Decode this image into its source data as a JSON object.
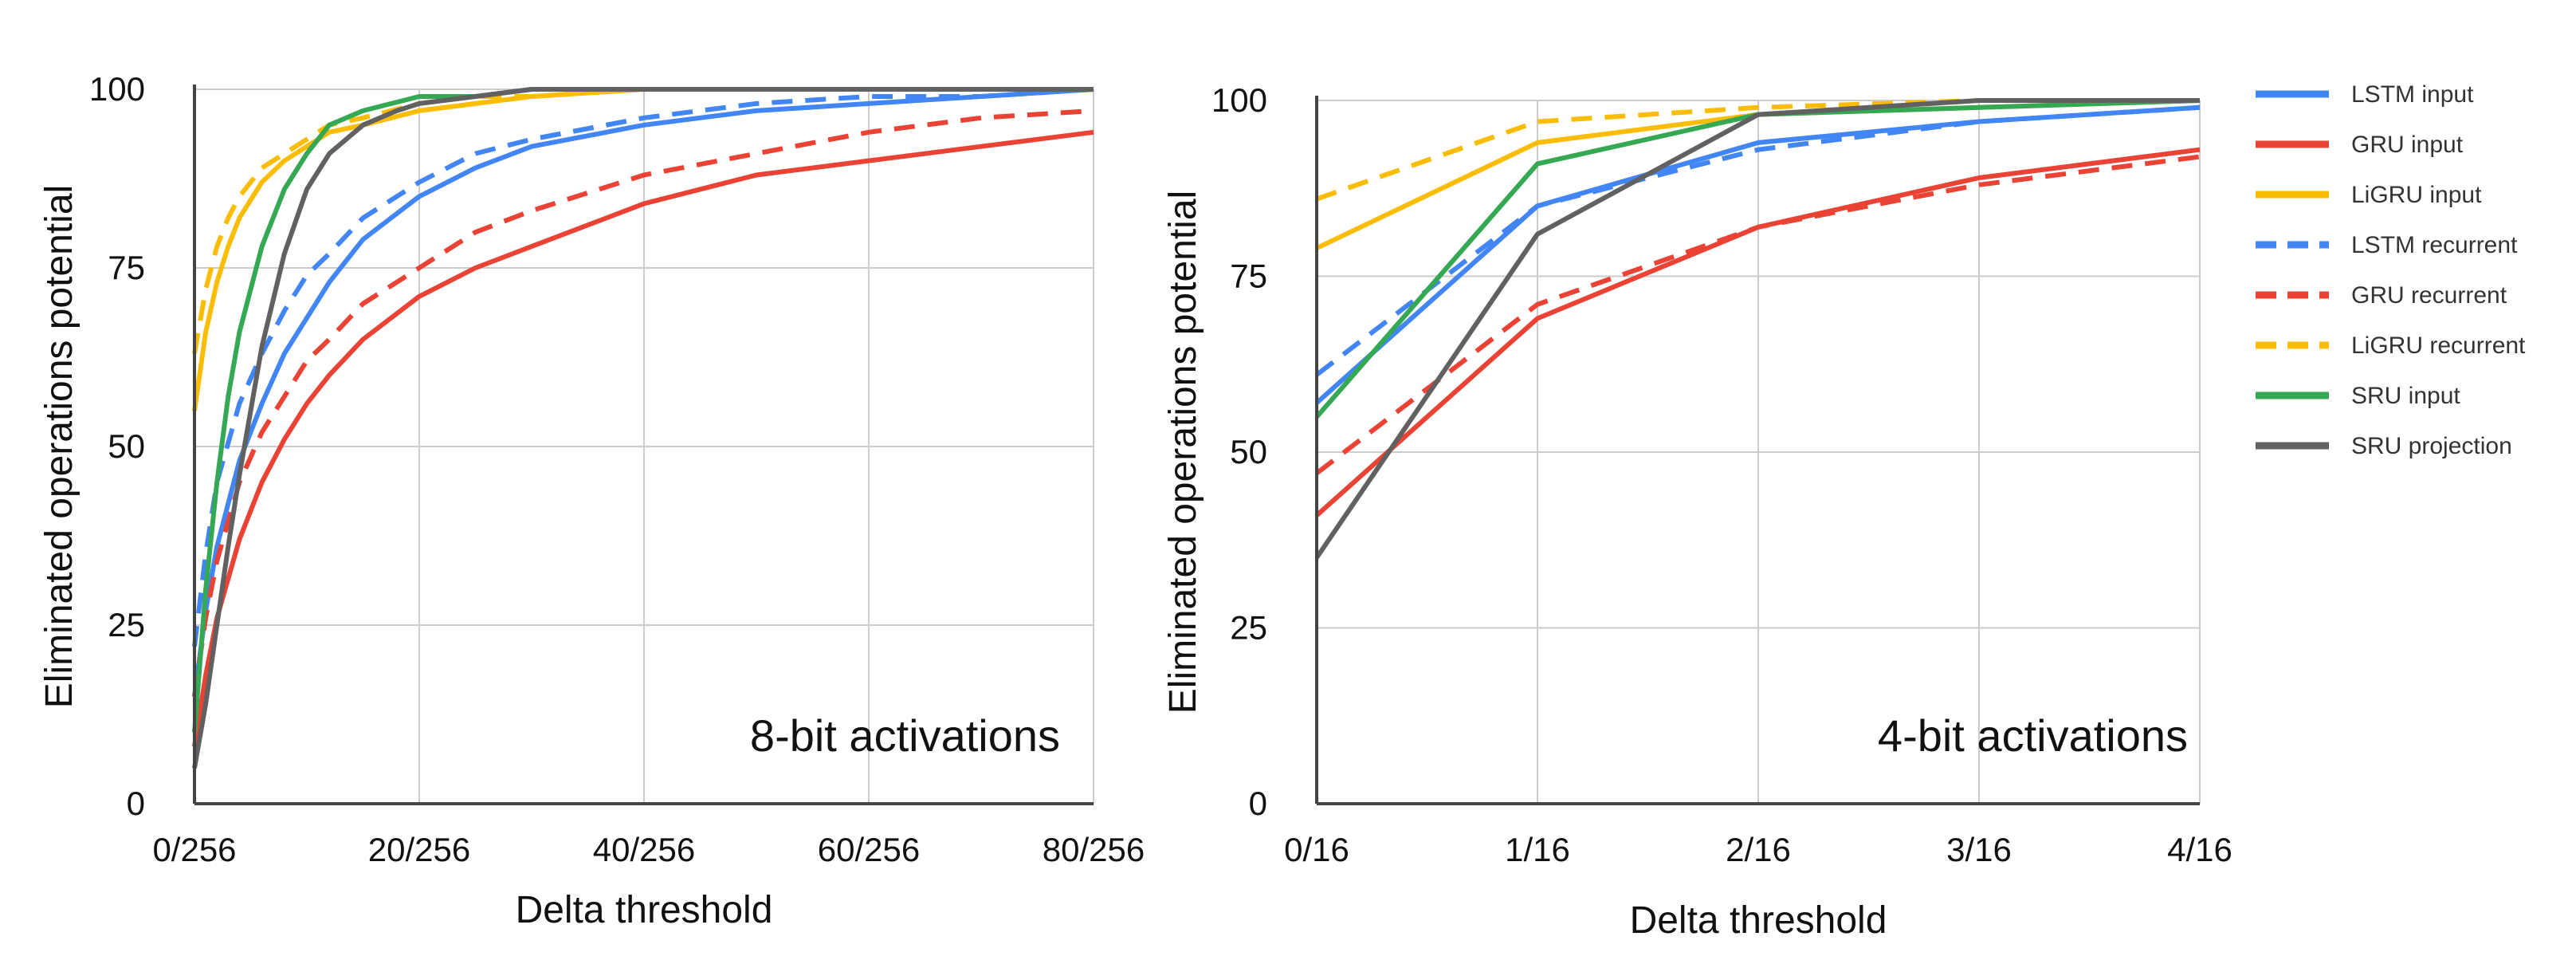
{
  "legend": [
    {
      "name": "LSTM input",
      "color": "#4285F4",
      "dashed": false
    },
    {
      "name": "GRU input",
      "color": "#EA4335",
      "dashed": false
    },
    {
      "name": "LiGRU input",
      "color": "#FBBC04",
      "dashed": false
    },
    {
      "name": "LSTM recurrent",
      "color": "#4285F4",
      "dashed": true
    },
    {
      "name": "GRU recurrent",
      "color": "#EA4335",
      "dashed": true
    },
    {
      "name": "LiGRU recurrent",
      "color": "#FBBC04",
      "dashed": true
    },
    {
      "name": "SRU input",
      "color": "#34A853",
      "dashed": false
    },
    {
      "name": "SRU projection",
      "color": "#616161",
      "dashed": false
    }
  ],
  "chart_data": [
    {
      "type": "line",
      "annotation": "8-bit activations",
      "xlabel": "Delta threshold",
      "ylabel": "Eliminated operations potential",
      "xlim": [
        0,
        80
      ],
      "ylim": [
        0,
        100
      ],
      "xticks": [
        0,
        20,
        40,
        60,
        80
      ],
      "xtick_labels": [
        "0/256",
        "20/256",
        "40/256",
        "60/256",
        "80/256"
      ],
      "yticks": [
        0,
        25,
        50,
        75,
        100
      ],
      "ytick_labels": [
        "0",
        "25",
        "50",
        "75",
        "100"
      ],
      "grid": true,
      "series": [
        {
          "name": "LSTM input",
          "x": [
            0,
            1,
            2,
            4,
            6,
            8,
            10,
            12,
            15,
            20,
            25,
            30,
            40,
            50,
            60,
            70,
            80
          ],
          "y": [
            15,
            27,
            36,
            48,
            56,
            63,
            68,
            73,
            79,
            85,
            89,
            92,
            95,
            97,
            98,
            99,
            100
          ]
        },
        {
          "name": "GRU input",
          "x": [
            0,
            1,
            2,
            4,
            6,
            8,
            10,
            12,
            15,
            20,
            25,
            30,
            40,
            50,
            60,
            70,
            80
          ],
          "y": [
            8,
            18,
            26,
            37,
            45,
            51,
            56,
            60,
            65,
            71,
            75,
            78,
            84,
            88,
            90,
            92,
            94
          ]
        },
        {
          "name": "LiGRU input",
          "x": [
            0,
            1,
            2,
            3,
            4,
            6,
            8,
            10,
            12,
            15,
            20,
            25,
            30,
            40,
            50,
            60,
            80
          ],
          "y": [
            55,
            66,
            73,
            78,
            82,
            87,
            90,
            92,
            94,
            95,
            97,
            98,
            99,
            100,
            100,
            100,
            100
          ]
        },
        {
          "name": "LSTM recurrent",
          "x": [
            0,
            1,
            2,
            4,
            6,
            8,
            10,
            12,
            15,
            20,
            25,
            30,
            40,
            50,
            60,
            70,
            80
          ],
          "y": [
            22,
            35,
            45,
            56,
            63,
            69,
            74,
            77,
            82,
            87,
            91,
            93,
            96,
            98,
            99,
            99,
            100
          ]
        },
        {
          "name": "GRU recurrent",
          "x": [
            0,
            1,
            2,
            4,
            6,
            8,
            10,
            12,
            15,
            20,
            25,
            30,
            40,
            50,
            60,
            70,
            80
          ],
          "y": [
            15,
            26,
            34,
            45,
            52,
            57,
            62,
            65,
            70,
            75,
            80,
            83,
            88,
            91,
            94,
            96,
            97
          ]
        },
        {
          "name": "LiGRU recurrent",
          "x": [
            0,
            1,
            2,
            3,
            4,
            6,
            8,
            10,
            12,
            15,
            20,
            25,
            30,
            40,
            50,
            80
          ],
          "y": [
            63,
            72,
            78,
            82,
            85,
            89,
            91,
            93,
            95,
            96,
            98,
            99,
            99,
            100,
            100,
            100
          ]
        },
        {
          "name": "SRU input",
          "x": [
            0,
            1,
            2,
            3,
            4,
            6,
            8,
            10,
            12,
            15,
            20,
            25,
            30,
            40,
            50,
            80
          ],
          "y": [
            10,
            30,
            45,
            57,
            66,
            78,
            86,
            91,
            95,
            97,
            99,
            99,
            100,
            100,
            100,
            100
          ]
        },
        {
          "name": "SRU projection",
          "x": [
            0,
            1,
            2,
            3,
            4,
            6,
            8,
            10,
            12,
            15,
            18,
            20,
            25,
            30,
            40,
            50,
            80
          ],
          "y": [
            5,
            14,
            25,
            36,
            46,
            64,
            77,
            86,
            91,
            95,
            97,
            98,
            99,
            100,
            100,
            100,
            100
          ]
        }
      ]
    },
    {
      "type": "line",
      "annotation": "4-bit activations",
      "xlabel": "Delta threshold",
      "ylabel": "Eliminated operations potential",
      "xlim": [
        0,
        4
      ],
      "ylim": [
        0,
        100
      ],
      "xticks": [
        0,
        1,
        2,
        3,
        4
      ],
      "xtick_labels": [
        "0/16",
        "1/16",
        "2/16",
        "3/16",
        "4/16"
      ],
      "yticks": [
        0,
        25,
        50,
        75,
        100
      ],
      "ytick_labels": [
        "0",
        "25",
        "50",
        "75",
        "100"
      ],
      "grid": true,
      "series": [
        {
          "name": "LSTM input",
          "x": [
            0,
            1,
            2,
            3,
            4
          ],
          "y": [
            57,
            85,
            94,
            97,
            99
          ]
        },
        {
          "name": "GRU input",
          "x": [
            0,
            1,
            2,
            3,
            4
          ],
          "y": [
            41,
            69,
            82,
            89,
            93
          ]
        },
        {
          "name": "LiGRU input",
          "x": [
            0,
            1,
            2,
            3,
            4
          ],
          "y": [
            79,
            94,
            98,
            99,
            100
          ]
        },
        {
          "name": "LSTM recurrent",
          "x": [
            0,
            1,
            2,
            3,
            4
          ],
          "y": [
            61,
            85,
            93,
            97,
            99
          ]
        },
        {
          "name": "GRU recurrent",
          "x": [
            0,
            1,
            2,
            3,
            4
          ],
          "y": [
            47,
            71,
            82,
            88,
            92
          ]
        },
        {
          "name": "LiGRU recurrent",
          "x": [
            0,
            1,
            2,
            3,
            4
          ],
          "y": [
            86,
            97,
            99,
            100,
            100
          ]
        },
        {
          "name": "SRU input",
          "x": [
            0,
            1,
            2,
            3,
            4
          ],
          "y": [
            55,
            91,
            98,
            99,
            100
          ]
        },
        {
          "name": "SRU projection",
          "x": [
            0,
            1,
            2,
            3,
            4
          ],
          "y": [
            35,
            81,
            98,
            100,
            100
          ]
        }
      ]
    }
  ]
}
